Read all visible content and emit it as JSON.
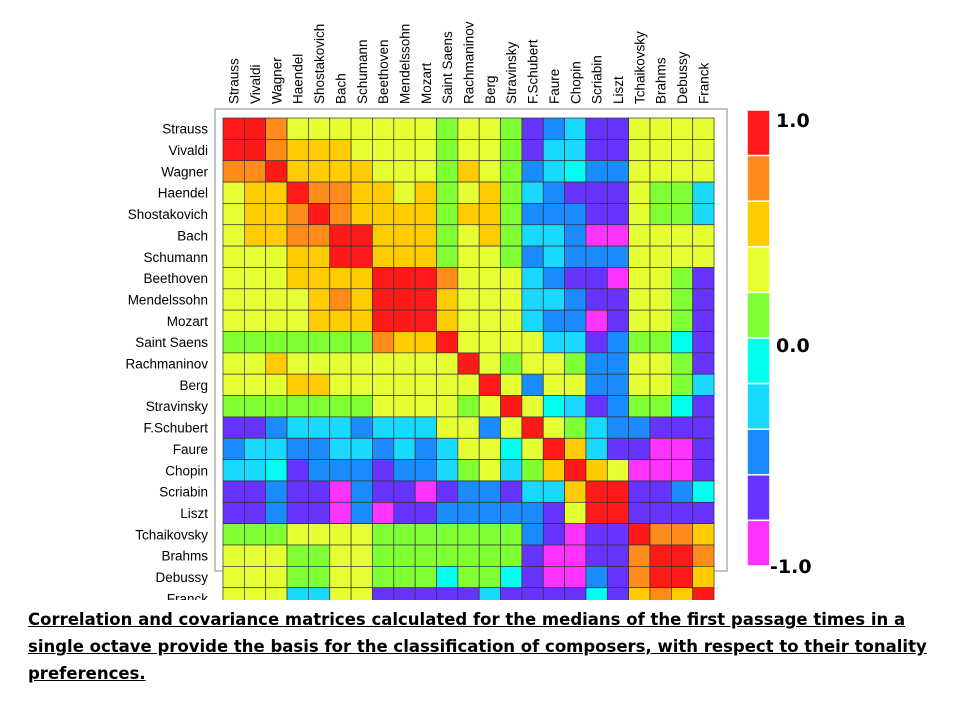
{
  "chart_data": {
    "type": "heatmap",
    "title": "",
    "xlabel": "",
    "ylabel": "",
    "labels": [
      "Strauss",
      "Vivaldi",
      "Wagner",
      "Haendel",
      "Shostakovich",
      "Bach",
      "Schumann",
      "Beethoven",
      "Mendelssohn",
      "Mozart",
      "Saint Saens",
      "Rachmaninov",
      "Berg",
      "Stravinsky",
      "F.Schubert",
      "Faure",
      "Chopin",
      "Scriabin",
      "Liszt",
      "Tchaikovsky",
      "Brahms",
      "Debussy",
      "Franck"
    ],
    "column_labels": [
      "Strauss",
      "Vivaldi",
      "Wagner",
      "Haendel",
      "Shostakovich",
      "Bach",
      "Schumann",
      "Beethoven",
      "Mendelssohn",
      "Mozart",
      "Saint Saens",
      "Rachmaninov",
      "Berg",
      "Stravinsky",
      "F.Schubert",
      "Faure",
      "Chopin",
      "Scriabin",
      "Liszt",
      "Tchaikovsky",
      "Brahms",
      "Debussy",
      "Franck"
    ],
    "value_range": [
      -1.0,
      1.0
    ],
    "color_scale": {
      "ticks": [
        "1.0",
        "0.0",
        "-1.0"
      ],
      "colors": [
        "#ff1a1a",
        "#ff8c1a",
        "#ffcc00",
        "#e6ff33",
        "#80ff33",
        "#00ffee",
        "#1ad9ff",
        "#1a8cff",
        "#6633ff",
        "#ff33ff"
      ]
    },
    "matrix": [
      [
        1.0,
        0.9,
        0.7,
        0.4,
        0.35,
        0.4,
        0.35,
        0.35,
        0.35,
        0.35,
        0.1,
        0.4,
        0.35,
        0.1,
        -0.7,
        -0.4,
        -0.3,
        -0.7,
        -0.7,
        0.35,
        0.35,
        0.3,
        0.35
      ],
      [
        0.9,
        1.0,
        0.65,
        0.6,
        0.6,
        0.5,
        0.4,
        0.35,
        0.35,
        0.35,
        0.05,
        0.4,
        0.35,
        0.05,
        -0.6,
        -0.3,
        -0.2,
        -0.6,
        -0.6,
        0.3,
        0.3,
        0.25,
        0.3
      ],
      [
        0.7,
        0.65,
        1.0,
        0.6,
        0.6,
        0.5,
        0.45,
        0.4,
        0.4,
        0.4,
        0.15,
        0.45,
        0.4,
        0.15,
        -0.4,
        -0.2,
        -0.1,
        -0.5,
        -0.4,
        0.35,
        0.35,
        0.3,
        0.35
      ],
      [
        0.4,
        0.55,
        0.6,
        1.0,
        0.7,
        0.7,
        0.5,
        0.45,
        0.4,
        0.45,
        0.1,
        0.4,
        0.5,
        0.1,
        -0.3,
        -0.5,
        -0.7,
        -0.7,
        -0.7,
        0.3,
        0.1,
        0.05,
        -0.3
      ],
      [
        0.35,
        0.55,
        0.55,
        0.7,
        1.0,
        0.75,
        0.6,
        0.55,
        0.6,
        0.6,
        0.2,
        0.45,
        0.45,
        0.1,
        -0.4,
        -0.4,
        -0.5,
        -0.7,
        -0.7,
        0.3,
        0.1,
        0.1,
        -0.2
      ],
      [
        0.35,
        0.5,
        0.5,
        0.7,
        0.75,
        1.0,
        0.8,
        0.55,
        0.6,
        0.6,
        0.1,
        0.4,
        0.45,
        0.1,
        -0.35,
        -0.3,
        -0.5,
        -0.8,
        -0.8,
        0.35,
        0.35,
        0.3,
        0.3
      ],
      [
        0.3,
        0.4,
        0.4,
        0.5,
        0.55,
        0.85,
        1.0,
        0.6,
        0.55,
        0.5,
        0.05,
        0.35,
        0.35,
        0.05,
        -0.4,
        -0.35,
        -0.4,
        -0.5,
        -0.45,
        0.35,
        0.35,
        0.3,
        0.3
      ],
      [
        0.35,
        0.3,
        0.4,
        0.45,
        0.55,
        0.6,
        0.55,
        1.0,
        0.85,
        0.9,
        0.7,
        0.4,
        0.4,
        0.4,
        -0.3,
        -0.5,
        -0.6,
        -0.7,
        -0.8,
        0.3,
        0.3,
        0.15,
        -0.7
      ],
      [
        0.35,
        0.35,
        0.4,
        0.35,
        0.6,
        0.65,
        0.55,
        0.9,
        1.0,
        0.85,
        0.6,
        0.4,
        0.4,
        0.4,
        -0.3,
        -0.3,
        -0.5,
        -0.7,
        -0.7,
        0.3,
        0.3,
        0.05,
        -0.6
      ],
      [
        0.4,
        0.35,
        0.4,
        0.4,
        0.6,
        0.6,
        0.5,
        0.9,
        0.85,
        1.0,
        0.6,
        0.4,
        0.35,
        0.4,
        -0.3,
        -0.5,
        -0.5,
        -0.8,
        -0.7,
        0.3,
        0.3,
        0.2,
        -0.7
      ],
      [
        0.1,
        0.1,
        0.15,
        0.1,
        0.2,
        0.1,
        0.05,
        0.7,
        0.6,
        0.6,
        1.0,
        0.35,
        0.3,
        0.35,
        0.4,
        -0.3,
        -0.3,
        -0.6,
        -0.5,
        0.1,
        0.1,
        -0.1,
        -0.7
      ],
      [
        0.35,
        0.4,
        0.45,
        0.35,
        0.4,
        0.4,
        0.35,
        0.4,
        0.4,
        0.4,
        0.35,
        1.0,
        0.3,
        0.1,
        0.3,
        0.3,
        0.2,
        -0.5,
        -0.5,
        0.3,
        0.3,
        0.2,
        -0.7
      ],
      [
        0.35,
        0.35,
        0.4,
        0.5,
        0.45,
        0.4,
        0.35,
        0.4,
        0.4,
        0.35,
        0.3,
        0.3,
        1.0,
        0.3,
        -0.5,
        0.3,
        0.3,
        -0.5,
        -0.5,
        0.3,
        0.3,
        0.2,
        -0.3
      ],
      [
        0.1,
        0.05,
        0.15,
        0.1,
        0.1,
        0.1,
        0.05,
        0.4,
        0.4,
        0.4,
        0.35,
        0.1,
        0.3,
        1.0,
        0.3,
        -0.1,
        -0.3,
        -0.6,
        -0.5,
        0.1,
        0.1,
        -0.1,
        -0.7
      ],
      [
        -0.7,
        -0.6,
        -0.4,
        -0.3,
        -0.35,
        -0.35,
        -0.4,
        -0.3,
        -0.3,
        -0.3,
        0.4,
        0.3,
        -0.5,
        0.3,
        1.0,
        0.4,
        0.2,
        -0.3,
        -0.5,
        -0.5,
        -0.6,
        -0.7,
        -0.7
      ],
      [
        -0.4,
        -0.3,
        -0.2,
        -0.5,
        -0.4,
        -0.3,
        -0.35,
        -0.5,
        -0.3,
        -0.5,
        -0.3,
        0.3,
        0.3,
        -0.1,
        0.4,
        1.0,
        0.5,
        -0.3,
        -0.6,
        -0.7,
        -0.8,
        -0.9,
        -0.6
      ],
      [
        -0.3,
        -0.2,
        -0.1,
        -0.7,
        -0.5,
        -0.5,
        -0.4,
        -0.6,
        -0.5,
        -0.5,
        -0.3,
        0.2,
        0.3,
        -0.3,
        0.2,
        0.5,
        1.0,
        0.5,
        0.4,
        -0.9,
        -0.8,
        -0.9,
        -0.7
      ],
      [
        -0.7,
        -0.6,
        -0.5,
        -0.7,
        -0.7,
        -0.8,
        -0.5,
        -0.7,
        -0.7,
        -0.8,
        -0.6,
        -0.5,
        -0.5,
        -0.6,
        -0.3,
        -0.3,
        0.5,
        1.0,
        0.85,
        -0.6,
        -0.6,
        -0.4,
        -0.1
      ],
      [
        -0.7,
        -0.6,
        -0.4,
        -0.7,
        -0.7,
        -0.8,
        -0.45,
        -0.8,
        -0.7,
        -0.7,
        -0.5,
        -0.5,
        -0.5,
        -0.5,
        -0.5,
        -0.6,
        0.4,
        0.85,
        1.0,
        -0.7,
        -0.6,
        -0.7,
        -0.7
      ],
      [
        0.15,
        0.05,
        0.1,
        0.3,
        0.3,
        0.35,
        0.35,
        0.1,
        0.1,
        0.1,
        0.1,
        0.1,
        0.1,
        0.1,
        -0.5,
        -0.7,
        -0.9,
        -0.6,
        -0.7,
        1.0,
        0.7,
        0.7,
        0.5
      ],
      [
        0.3,
        0.3,
        0.35,
        0.1,
        0.1,
        0.35,
        0.35,
        0.1,
        0.1,
        0.1,
        0.1,
        0.1,
        0.1,
        0.1,
        -0.6,
        -0.8,
        -0.8,
        -0.6,
        -0.6,
        0.7,
        1.0,
        0.8,
        0.7
      ],
      [
        0.3,
        0.25,
        0.3,
        0.05,
        0.1,
        0.3,
        0.3,
        0.15,
        0.05,
        0.2,
        -0.1,
        0.2,
        0.2,
        -0.1,
        -0.7,
        -0.9,
        -0.9,
        -0.4,
        -0.7,
        0.7,
        0.8,
        1.0,
        0.6
      ],
      [
        0.35,
        0.3,
        0.35,
        -0.3,
        -0.2,
        0.3,
        0.3,
        -0.7,
        -0.6,
        -0.7,
        -0.7,
        -0.7,
        -0.3,
        -0.7,
        -0.7,
        -0.6,
        -0.7,
        -0.1,
        -0.7,
        0.5,
        0.7,
        0.6,
        1.0
      ]
    ]
  },
  "caption": "Correlation and covariance matrices calculated for the medians of the first passage times in a single octave provide the basis for the classification of composers, with respect to their tonality preferences."
}
